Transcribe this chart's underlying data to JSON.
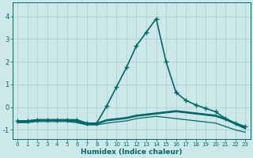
{
  "xlabel": "Humidex (Indice chaleur)",
  "ylabel": "",
  "xlim": [
    -0.5,
    23.5
  ],
  "ylim": [
    -1.4,
    4.6
  ],
  "background_color": "#cde8e8",
  "grid_color": "#b0d0d0",
  "line_color": "#006868",
  "xticks": [
    0,
    1,
    2,
    3,
    4,
    5,
    6,
    7,
    8,
    9,
    10,
    11,
    12,
    13,
    14,
    15,
    16,
    17,
    18,
    19,
    20,
    21,
    22,
    23
  ],
  "yticks": [
    -1,
    0,
    1,
    2,
    3,
    4
  ],
  "series": [
    {
      "x": [
        0,
        1,
        2,
        3,
        4,
        5,
        6,
        7,
        8,
        9,
        10,
        11,
        12,
        13,
        14,
        15,
        16,
        17,
        18,
        19,
        20,
        21,
        22,
        23
      ],
      "y": [
        -0.6,
        -0.6,
        -0.55,
        -0.55,
        -0.55,
        -0.55,
        -0.55,
        -0.7,
        -0.7,
        0.05,
        0.9,
        1.75,
        2.7,
        3.3,
        3.9,
        2.0,
        0.65,
        0.3,
        0.1,
        -0.05,
        -0.2,
        -0.5,
        -0.7,
        -0.85
      ],
      "marker": "+",
      "markersize": 4,
      "linewidth": 1.2
    },
    {
      "x": [
        0,
        1,
        2,
        3,
        4,
        5,
        6,
        7,
        8,
        9,
        10,
        11,
        12,
        13,
        14,
        15,
        16,
        17,
        18,
        19,
        20,
        21,
        22,
        23
      ],
      "y": [
        -0.6,
        -0.6,
        -0.55,
        -0.55,
        -0.55,
        -0.55,
        -0.6,
        -0.7,
        -0.7,
        -0.55,
        -0.5,
        -0.45,
        -0.35,
        -0.3,
        -0.25,
        -0.2,
        -0.15,
        -0.2,
        -0.25,
        -0.3,
        -0.35,
        -0.5,
        -0.7,
        -0.9
      ],
      "marker": null,
      "markersize": 0,
      "linewidth": 0.9
    },
    {
      "x": [
        0,
        1,
        2,
        3,
        4,
        5,
        6,
        7,
        8,
        9,
        10,
        11,
        12,
        13,
        14,
        15,
        16,
        17,
        18,
        19,
        20,
        21,
        22,
        23
      ],
      "y": [
        -0.62,
        -0.62,
        -0.57,
        -0.57,
        -0.57,
        -0.57,
        -0.62,
        -0.72,
        -0.72,
        -0.57,
        -0.52,
        -0.47,
        -0.37,
        -0.32,
        -0.27,
        -0.22,
        -0.17,
        -0.22,
        -0.27,
        -0.32,
        -0.37,
        -0.52,
        -0.72,
        -0.92
      ],
      "marker": null,
      "markersize": 0,
      "linewidth": 0.9
    },
    {
      "x": [
        0,
        1,
        2,
        3,
        4,
        5,
        6,
        7,
        8,
        9,
        10,
        11,
        12,
        13,
        14,
        15,
        16,
        17,
        18,
        19,
        20,
        21,
        22,
        23
      ],
      "y": [
        -0.65,
        -0.65,
        -0.6,
        -0.6,
        -0.6,
        -0.6,
        -0.65,
        -0.75,
        -0.75,
        -0.6,
        -0.55,
        -0.5,
        -0.4,
        -0.35,
        -0.3,
        -0.25,
        -0.2,
        -0.25,
        -0.3,
        -0.35,
        -0.4,
        -0.55,
        -0.75,
        -0.95
      ],
      "marker": null,
      "markersize": 0,
      "linewidth": 0.9
    },
    {
      "x": [
        0,
        1,
        2,
        3,
        4,
        5,
        6,
        7,
        8,
        9,
        10,
        11,
        12,
        13,
        14,
        15,
        16,
        17,
        18,
        19,
        20,
        21,
        22,
        23
      ],
      "y": [
        -0.68,
        -0.68,
        -0.63,
        -0.63,
        -0.63,
        -0.63,
        -0.68,
        -0.78,
        -0.78,
        -0.7,
        -0.65,
        -0.6,
        -0.5,
        -0.45,
        -0.4,
        -0.45,
        -0.5,
        -0.55,
        -0.6,
        -0.65,
        -0.7,
        -0.85,
        -1.0,
        -1.1
      ],
      "marker": null,
      "markersize": 0,
      "linewidth": 0.9
    }
  ]
}
